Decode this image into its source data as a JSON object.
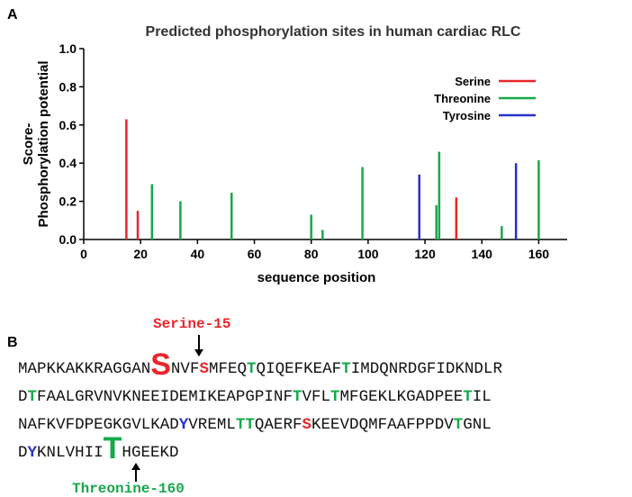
{
  "panel_a_label": "A",
  "panel_b_label": "B",
  "chart_data": {
    "type": "bar",
    "title": "Predicted phosphorylation sites in  human cardiac RLC",
    "xlabel": "sequence position",
    "ylabel_line1": "Score-",
    "ylabel_line2": "Phosphorylation potential",
    "xlim": [
      0,
      170
    ],
    "ylim": [
      0,
      1.0
    ],
    "xticks": [
      0,
      20,
      40,
      60,
      80,
      100,
      120,
      140,
      160
    ],
    "yticks": [
      0.0,
      0.2,
      0.4,
      0.6,
      0.8,
      1.0
    ],
    "legend_position": "top-right",
    "series": [
      {
        "name": "Serine",
        "color": "#e8262a",
        "points": [
          [
            15,
            0.63
          ],
          [
            19,
            0.15
          ],
          [
            131,
            0.22
          ]
        ]
      },
      {
        "name": "Threonine",
        "color": "#17a84b",
        "points": [
          [
            24,
            0.29
          ],
          [
            34,
            0.2
          ],
          [
            52,
            0.245
          ],
          [
            80,
            0.13
          ],
          [
            84,
            0.05
          ],
          [
            98,
            0.38
          ],
          [
            124,
            0.18
          ],
          [
            125,
            0.46
          ],
          [
            147,
            0.07
          ],
          [
            160,
            0.415
          ]
        ]
      },
      {
        "name": "Tyrosine",
        "color": "#2630c8",
        "points": [
          [
            118,
            0.34
          ],
          [
            152,
            0.4
          ]
        ]
      }
    ]
  },
  "sequence": {
    "callout_top": "Serine-15",
    "callout_bottom": "Threonine-160",
    "lines": [
      "MAPKKAKKRAGGANSNVFSMFEQTQIQEFKEAFTIMDQNRDGFIDKNDLR",
      "DTFAALGRVNVKNEEIDEMIKEAPGPINFTVFLTMFGEKLKGADPEETIL",
      "NAFKVFDPEGKGVLKADYVREMLTTQAERFSKEEVDQMFAAFPPDVTGNL",
      "DYKNLVHIITHGEEKD"
    ],
    "highlights": [
      {
        "pos": 15,
        "type": "S",
        "large": true
      },
      {
        "pos": 19,
        "type": "S"
      },
      {
        "pos": 24,
        "type": "T"
      },
      {
        "pos": 34,
        "type": "T"
      },
      {
        "pos": 52,
        "type": "T"
      },
      {
        "pos": 80,
        "type": "T"
      },
      {
        "pos": 84,
        "type": "T"
      },
      {
        "pos": 98,
        "type": "T"
      },
      {
        "pos": 118,
        "type": "Y"
      },
      {
        "pos": 124,
        "type": "T"
      },
      {
        "pos": 125,
        "type": "T"
      },
      {
        "pos": 131,
        "type": "S"
      },
      {
        "pos": 147,
        "type": "T"
      },
      {
        "pos": 152,
        "type": "Y"
      },
      {
        "pos": 160,
        "type": "T",
        "large": true
      }
    ]
  }
}
